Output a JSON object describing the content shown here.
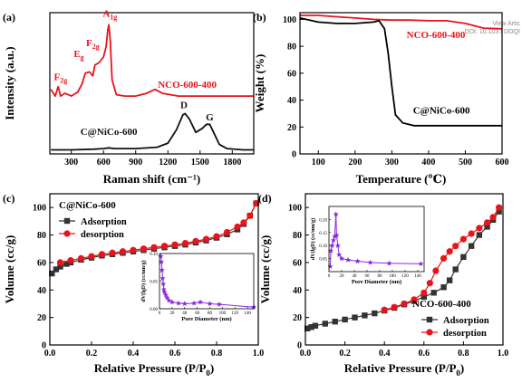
{
  "watermark": {
    "line1": "View Artic",
    "line2": "DOI: 10.103 / DOQI"
  },
  "chart_data": [
    {
      "panel": "(a)",
      "type": "line",
      "xlabel": "Raman shift (cm⁻¹)",
      "ylabel": "Intensity (a.u.)",
      "xlim": [
        100,
        2000
      ],
      "xticks": [
        "300",
        "600",
        "900",
        "1200",
        "1500",
        "1800"
      ],
      "yticks_shown": false,
      "series": [
        {
          "name": "NCO-600-400",
          "color": "#e8141c",
          "x": [
            110,
            150,
            178,
            200,
            240,
            300,
            360,
            400,
            430,
            470,
            500,
            520,
            560,
            600,
            625,
            640,
            650,
            662,
            680,
            720,
            800,
            900,
            1000,
            1080,
            1150,
            1300,
            1500,
            1700,
            2000
          ],
          "y": [
            0.48,
            0.43,
            0.5,
            0.43,
            0.45,
            0.43,
            0.46,
            0.52,
            0.6,
            0.61,
            0.58,
            0.66,
            0.68,
            0.72,
            0.8,
            0.92,
            0.96,
            0.85,
            0.55,
            0.44,
            0.43,
            0.43,
            0.45,
            0.48,
            0.45,
            0.43,
            0.43,
            0.43,
            0.43
          ]
        },
        {
          "name": "C@NiCo-600",
          "color": "#111111",
          "x": [
            110,
            300,
            500,
            600,
            650,
            700,
            900,
            1100,
            1200,
            1280,
            1340,
            1360,
            1400,
            1460,
            1520,
            1560,
            1590,
            1620,
            1680,
            1750,
            1900,
            2000
          ],
          "y": [
            0.03,
            0.03,
            0.035,
            0.04,
            0.045,
            0.04,
            0.04,
            0.05,
            0.08,
            0.18,
            0.29,
            0.3,
            0.26,
            0.16,
            0.19,
            0.22,
            0.22,
            0.17,
            0.07,
            0.04,
            0.03,
            0.03
          ]
        }
      ],
      "annotations": [
        {
          "text": "F",
          "sub": "2g",
          "x": 200,
          "y": 0.55,
          "color": "#e8141c"
        },
        {
          "text": "E",
          "sub": "g",
          "x": 370,
          "y": 0.72,
          "color": "#e8141c"
        },
        {
          "text": "F",
          "sub": "2g",
          "x": 500,
          "y": 0.8,
          "color": "#e8141c"
        },
        {
          "text": "A",
          "sub": "1g",
          "x": 660,
          "y": 1.02,
          "color": "#e8141c"
        },
        {
          "text": "NCO-600-400",
          "x": 1380,
          "y": 0.49,
          "color": "#e8141c"
        },
        {
          "text": "D",
          "x": 1350,
          "y": 0.34,
          "color": "#111111"
        },
        {
          "text": "G",
          "x": 1590,
          "y": 0.25,
          "color": "#111111"
        },
        {
          "text": "C@NiCo-600",
          "x": 650,
          "y": 0.14,
          "color": "#111111"
        }
      ]
    },
    {
      "panel": "(b)",
      "type": "line",
      "xlabel": "Temperature (℃)",
      "ylabel": "Weight (%)",
      "xlim": [
        50,
        600
      ],
      "ylim": [
        0,
        105
      ],
      "xticks": [
        "100",
        "200",
        "300",
        "400",
        "500",
        "600"
      ],
      "yticks": [
        "0",
        "20",
        "40",
        "60",
        "80",
        "100"
      ],
      "series": [
        {
          "name": "NCO-600-400",
          "color": "#e8141c",
          "x": [
            50,
            100,
            150,
            200,
            250,
            300,
            350,
            400,
            450,
            500,
            550,
            600
          ],
          "y": [
            103,
            103,
            102,
            101,
            100,
            99.5,
            99.5,
            99,
            99,
            97,
            93.5,
            93
          ]
        },
        {
          "name": "C@NiCo-600",
          "color": "#000000",
          "x": [
            50,
            100,
            150,
            200,
            250,
            265,
            280,
            290,
            300,
            310,
            330,
            360,
            400,
            500,
            600
          ],
          "y": [
            101,
            98,
            97,
            97,
            98,
            99,
            93,
            75,
            50,
            29,
            23,
            21,
            21,
            21,
            21
          ]
        }
      ],
      "annotations": [
        {
          "text": "NCO-600-400",
          "x": 420,
          "y": 86,
          "color": "#e8141c"
        },
        {
          "text": "C@NiCo-600",
          "x": 435,
          "y": 30,
          "color": "#000000"
        }
      ]
    },
    {
      "panel": "(c)",
      "type": "line",
      "title": "C@NiCo-600",
      "xlabel": "Relative Pressure (P/P₀)",
      "ylabel": "Volume (cc/g)",
      "xlim": [
        0,
        1.0
      ],
      "ylim": [
        0,
        110
      ],
      "xticks": [
        "0.0",
        "0.2",
        "0.4",
        "0.6",
        "0.8",
        "1.0"
      ],
      "yticks": [
        "0",
        "20",
        "40",
        "60",
        "80",
        "100"
      ],
      "legend": "top-left",
      "series": [
        {
          "name": "Adsorption",
          "color": "#333333",
          "marker": "square",
          "x": [
            0.01,
            0.03,
            0.05,
            0.08,
            0.1,
            0.15,
            0.2,
            0.25,
            0.3,
            0.35,
            0.4,
            0.45,
            0.5,
            0.55,
            0.6,
            0.65,
            0.7,
            0.75,
            0.8,
            0.85,
            0.9,
            0.93,
            0.96,
            0.99
          ],
          "y": [
            52,
            55,
            57,
            59,
            60,
            62,
            63.5,
            65,
            66,
            67,
            68,
            69,
            70,
            71,
            72,
            73,
            74.5,
            76,
            78,
            80.5,
            84,
            88,
            94,
            103
          ]
        },
        {
          "name": "desorption",
          "color": "#e8141c",
          "marker": "circle",
          "x": [
            0.05,
            0.1,
            0.15,
            0.2,
            0.25,
            0.3,
            0.35,
            0.4,
            0.45,
            0.5,
            0.55,
            0.6,
            0.65,
            0.7,
            0.75,
            0.8,
            0.85,
            0.9,
            0.93,
            0.96,
            0.99
          ],
          "y": [
            60,
            61.5,
            63,
            64.5,
            66,
            67,
            68,
            69,
            70,
            71,
            72,
            73,
            74,
            75.5,
            77,
            79,
            82,
            86,
            89,
            94,
            103
          ]
        }
      ],
      "inset": {
        "type": "line",
        "xlabel": "Pore Diameter (nm)",
        "ylabel": "dV(lgD) (cc/nm/g)",
        "xlim": [
          0,
          150
        ],
        "ylim": [
          0,
          0.1
        ],
        "xticks": [
          "0",
          "20",
          "40",
          "60",
          "80",
          "100",
          "120",
          "140"
        ],
        "yticks": [
          "0.00",
          "0.05",
          "0.10"
        ],
        "color": "#8a2be2",
        "x": [
          2,
          3,
          4,
          5,
          6,
          7,
          8,
          10,
          12,
          15,
          20,
          30,
          40,
          55,
          65,
          80,
          95,
          150
        ],
        "y": [
          0.095,
          0.085,
          0.07,
          0.055,
          0.045,
          0.035,
          0.03,
          0.025,
          0.02,
          0.015,
          0.012,
          0.01,
          0.009,
          0.01,
          0.012,
          0.009,
          0.008,
          0.003
        ]
      }
    },
    {
      "panel": "(d)",
      "type": "line",
      "title": "NCO-600-400",
      "xlabel": "Relative Pressure (P/P₀)",
      "ylabel": "Volume (cc/g)",
      "xlim": [
        0,
        1.0
      ],
      "ylim": [
        0,
        110
      ],
      "xticks": [
        "0.0",
        "0.2",
        "0.4",
        "0.6",
        "0.8",
        "1.0"
      ],
      "yticks": [
        "0",
        "20",
        "40",
        "60",
        "80",
        "100"
      ],
      "legend": "bottom-right",
      "series": [
        {
          "name": "Adsorption",
          "color": "#333333",
          "marker": "square",
          "x": [
            0.01,
            0.03,
            0.05,
            0.1,
            0.15,
            0.2,
            0.25,
            0.3,
            0.35,
            0.4,
            0.45,
            0.5,
            0.55,
            0.6,
            0.65,
            0.7,
            0.73,
            0.76,
            0.8,
            0.84,
            0.88,
            0.92,
            0.95,
            0.98
          ],
          "y": [
            12,
            13,
            14,
            15.5,
            17,
            18.5,
            20,
            21.5,
            23,
            25,
            27,
            29.5,
            32,
            35,
            38,
            42,
            47,
            55,
            64,
            72,
            80,
            86,
            91,
            97
          ]
        },
        {
          "name": "desorption",
          "color": "#e8141c",
          "marker": "circle",
          "x": [
            0.4,
            0.45,
            0.5,
            0.55,
            0.6,
            0.63,
            0.66,
            0.7,
            0.73,
            0.76,
            0.8,
            0.84,
            0.88,
            0.92,
            0.95,
            0.98
          ],
          "y": [
            25.5,
            27.5,
            30,
            33,
            38,
            45,
            54,
            63,
            68,
            72,
            77,
            81,
            85,
            89,
            93,
            100
          ]
        }
      ],
      "inset": {
        "type": "line",
        "xlabel": "Pore Diameter (nm)",
        "ylabel": "dV(lgD) (cc/nm/g)",
        "xlim": [
          0,
          150
        ],
        "ylim": [
          0,
          0.25
        ],
        "xticks": [
          "0",
          "20",
          "40",
          "60",
          "80",
          "100",
          "120",
          "140"
        ],
        "yticks": [
          "0.05",
          "0.10",
          "0.15",
          "0.20"
        ],
        "color": "#8a2be2",
        "x": [
          2,
          3,
          5,
          7,
          9,
          11,
          12,
          14,
          16,
          20,
          30,
          45,
          65,
          95,
          145
        ],
        "y": [
          0.02,
          0.08,
          0.1,
          0.12,
          0.135,
          0.22,
          0.14,
          0.1,
          0.065,
          0.05,
          0.045,
          0.04,
          0.035,
          0.032,
          0.03
        ]
      }
    }
  ]
}
